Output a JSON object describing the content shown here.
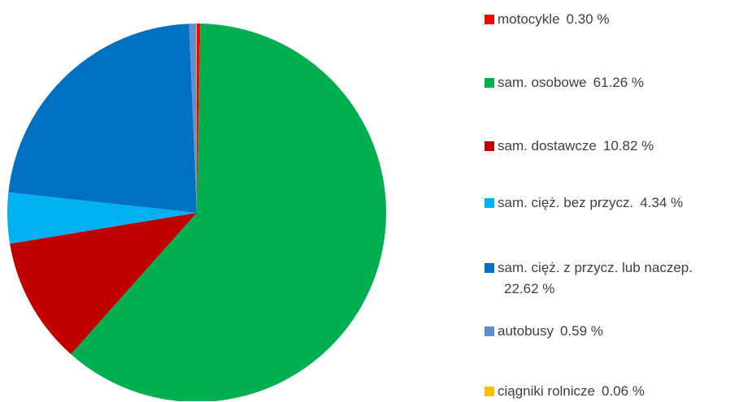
{
  "chart_data": {
    "type": "pie",
    "categories": [
      "motocykle",
      "sam. osobowe",
      "sam. dostawcze",
      "sam. cięż. bez przycz.",
      "sam. cięż. z przycz. lub naczep.",
      "autobusy",
      "ciągniki rolnicze"
    ],
    "values": [
      0.3,
      61.26,
      10.82,
      4.34,
      22.62,
      0.59,
      0.06
    ],
    "value_labels": [
      "0.30 %",
      "61.26 %",
      "10.82 %",
      "4.34 %",
      "22.62 %",
      "0.59 %",
      "0.06 %"
    ],
    "colors": [
      "#ff0000",
      "#00b050",
      "#c00000",
      "#00b0f0",
      "#0070c0",
      "#5b8fd6",
      "#ffc000"
    ]
  }
}
